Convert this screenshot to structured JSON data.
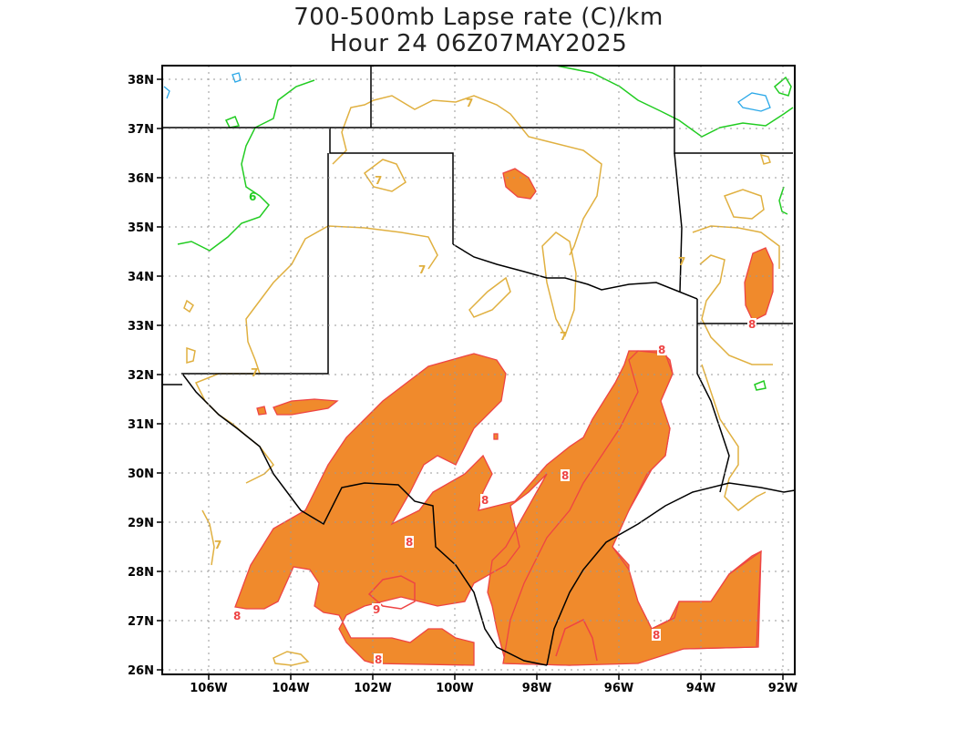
{
  "title": {
    "line1": "700-500mb Lapse rate (C)/km",
    "line2": "Hour 24 06Z07MAY2025"
  },
  "map": {
    "lon_range": [
      -107,
      -92
    ],
    "lat_range": [
      26,
      38
    ],
    "x_ticks": [
      "106W",
      "104W",
      "102W",
      "100W",
      "98W",
      "96W",
      "94W",
      "92W"
    ],
    "y_ticks": [
      "38N",
      "37N",
      "36N",
      "35N",
      "34N",
      "33N",
      "32N",
      "31N",
      "30N",
      "29N",
      "28N",
      "27N",
      "26N"
    ],
    "grid": "dotted",
    "shading": {
      "threshold": "8",
      "color": "#f08a2c"
    },
    "contour_labels": [
      {
        "text": "6",
        "color": "#22cc22"
      },
      {
        "text": "7",
        "color": "#e0b040"
      },
      {
        "text": "8",
        "color": "#ee4444"
      },
      {
        "text": "9",
        "color": "#ee4444"
      }
    ],
    "contour_colors": {
      "six": "#22cc22",
      "seven": "#e0b040",
      "eight": "#ee4444",
      "five": "#2aa8e8",
      "borders": "#000000"
    }
  }
}
